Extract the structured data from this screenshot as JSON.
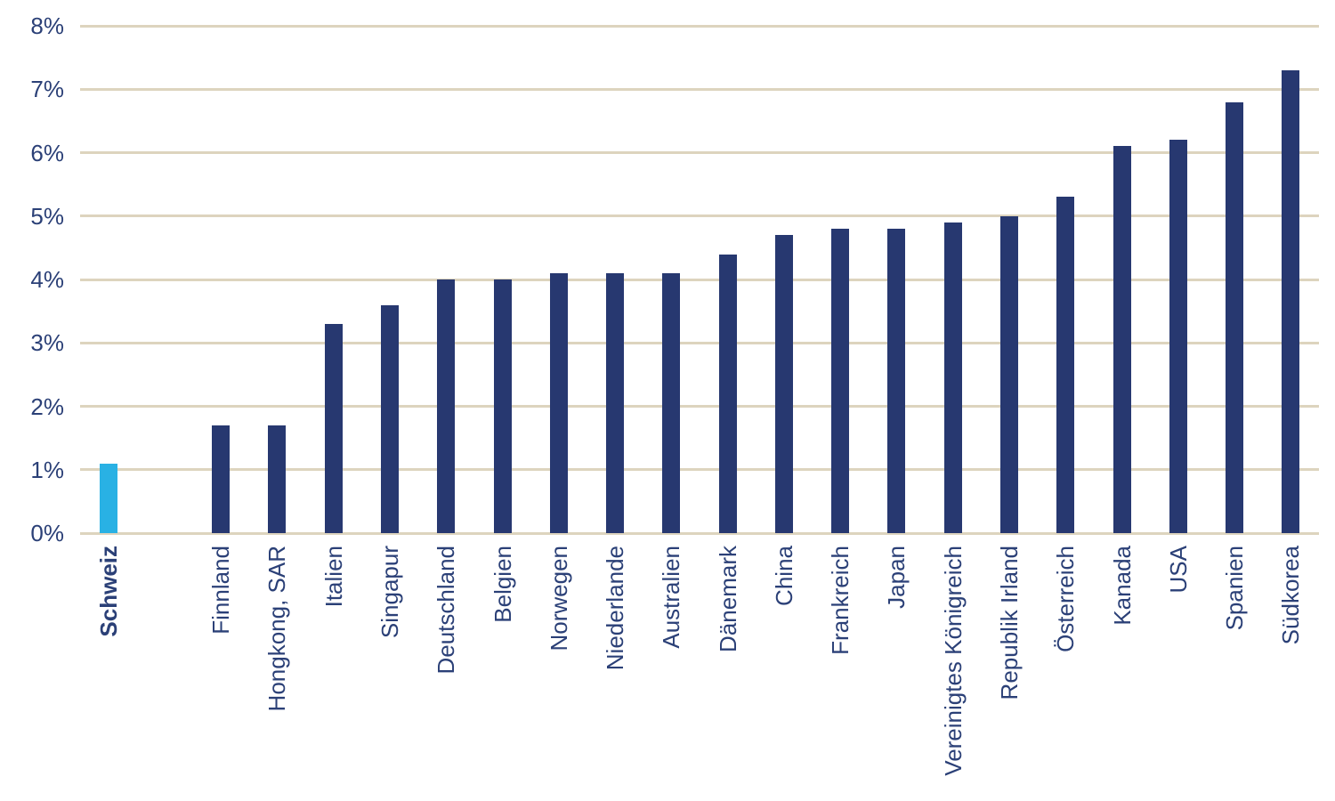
{
  "chart_data": {
    "type": "bar",
    "title": "",
    "xlabel": "",
    "ylabel": "",
    "categories": [
      "Schweiz",
      "Finnland",
      "Hongkong, SAR",
      "Italien",
      "Singapur",
      "Deutschland",
      "Belgien",
      "Norwegen",
      "Niederlande",
      "Australien",
      "Dänemark",
      "China",
      "Frankreich",
      "Japan",
      "Vereinigtes Königreich",
      "Republik Irland",
      "Österreich",
      "Kanada",
      "USA",
      "Spanien",
      "Südkorea"
    ],
    "values": [
      1.1,
      1.7,
      1.7,
      3.3,
      3.6,
      4.0,
      4.0,
      4.1,
      4.1,
      4.1,
      4.4,
      4.7,
      4.8,
      4.8,
      4.9,
      5.0,
      5.3,
      6.1,
      6.2,
      6.8,
      7.3
    ],
    "value_unit": "%",
    "ylim": [
      0,
      8
    ],
    "ytick_step": 1,
    "yticks": [
      "0%",
      "1%",
      "2%",
      "3%",
      "4%",
      "5%",
      "6%",
      "7%",
      "8%"
    ],
    "grid": "horizontal",
    "legend": "none",
    "highlight_index": 0,
    "highlight_label_bold": true,
    "gap_after_first_bar": true,
    "x_labels_rotated_bottom_to_top": true,
    "colors": {
      "bar": "#273870",
      "highlight": "#29B1E4",
      "axis_text": "#2B4077",
      "gridline": "#DDD4BE",
      "background": "#FFFFFF"
    }
  }
}
